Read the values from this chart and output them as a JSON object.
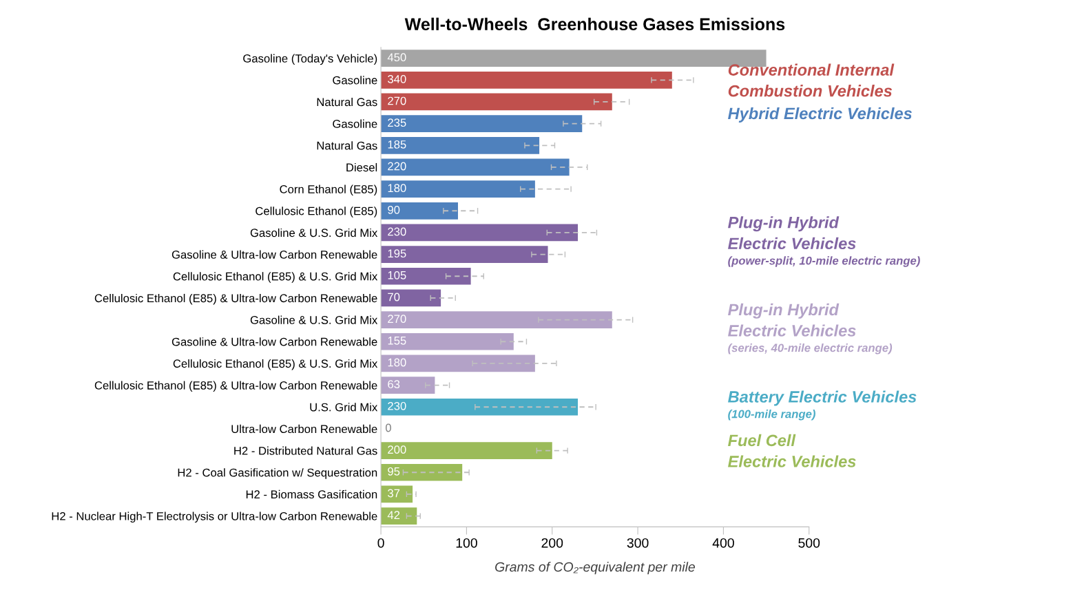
{
  "chart_data": {
    "type": "bar",
    "orientation": "horizontal",
    "title": "Well-to-Wheels  Greenhouse Gases Emissions",
    "xlabel": "Grams of CO₂-equivalent per mile",
    "categories": [
      "Gasoline (Today's Vehicle)",
      "Gasoline",
      "Natural Gas",
      "Gasoline",
      "Natural Gas",
      "Diesel",
      "Corn Ethanol (E85)",
      "Cellulosic Ethanol (E85)",
      "Gasoline & U.S. Grid Mix",
      "Gasoline & Ultra-low Carbon Renewable",
      "Cellulosic Ethanol (E85) & U.S. Grid Mix",
      "Cellulosic Ethanol (E85) & Ultra-low Carbon Renewable",
      "Gasoline & U.S. Grid Mix",
      "Gasoline & Ultra-low Carbon Renewable",
      "Cellulosic Ethanol (E85) & U.S. Grid Mix",
      "Cellulosic Ethanol (E85) & Ultra-low Carbon Renewable",
      "U.S. Grid Mix",
      "Ultra-low Carbon Renewable",
      "H2 - Distributed Natural Gas",
      "H2 - Coal Gasification w/ Sequestration",
      "H2 - Biomass Gasification",
      "H2 - Nuclear High-T Electrolysis or Ultra-low Carbon Renewable"
    ],
    "series": [
      {
        "color": "#a5a5a5",
        "values": [
          450,
          null,
          null,
          null,
          null,
          null,
          null,
          null,
          null,
          null,
          null,
          null,
          null,
          null,
          null,
          null,
          null,
          null,
          null,
          null,
          null,
          null
        ]
      },
      {
        "name": "Conventional Internal Combustion Vehicles",
        "color": "#c0504d",
        "values": [
          null,
          340,
          270,
          null,
          null,
          null,
          null,
          null,
          null,
          null,
          null,
          null,
          null,
          null,
          null,
          null,
          null,
          null,
          null,
          null,
          null,
          null
        ],
        "errors": [
          null,
          [
            316,
            365
          ],
          [
            249,
            290
          ],
          null,
          null,
          null,
          null,
          null,
          null,
          null,
          null,
          null,
          null,
          null,
          null,
          null,
          null,
          null,
          null,
          null,
          null,
          null
        ]
      },
      {
        "name": "Hybrid Electric Vehicles",
        "color": "#4f81bd",
        "values": [
          null,
          null,
          null,
          235,
          185,
          220,
          180,
          90,
          null,
          null,
          null,
          null,
          null,
          null,
          null,
          null,
          null,
          null,
          null,
          null,
          null,
          null
        ],
        "errors": [
          null,
          null,
          null,
          [
            213,
            257
          ],
          [
            168,
            203
          ],
          [
            199,
            241
          ],
          [
            163,
            222
          ],
          [
            73,
            113
          ],
          null,
          null,
          null,
          null,
          null,
          null,
          null,
          null,
          null,
          null,
          null,
          null,
          null,
          null
        ]
      },
      {
        "name": "Plug-in Hybrid Electric Vehicles (power-split, 10-mile electric range)",
        "color": "#8064a2",
        "values": [
          null,
          null,
          null,
          null,
          null,
          null,
          null,
          null,
          230,
          195,
          105,
          70,
          null,
          null,
          null,
          null,
          null,
          null,
          null,
          null,
          null,
          null
        ],
        "errors": [
          null,
          null,
          null,
          null,
          null,
          null,
          null,
          null,
          [
            194,
            252
          ],
          [
            176,
            215
          ],
          [
            76,
            120
          ],
          [
            58,
            87
          ],
          null,
          null,
          null,
          null,
          null,
          null,
          null,
          null,
          null,
          null
        ]
      },
      {
        "name": "Plug-in Hybrid Electric Vehicles (series, 40-mile electric range)",
        "color": "#b3a2c7",
        "values": [
          null,
          null,
          null,
          null,
          null,
          null,
          null,
          null,
          null,
          null,
          null,
          null,
          270,
          155,
          180,
          63,
          null,
          null,
          null,
          null,
          null,
          null
        ],
        "errors": [
          null,
          null,
          null,
          null,
          null,
          null,
          null,
          null,
          null,
          null,
          null,
          null,
          [
            184,
            294
          ],
          [
            140,
            170
          ],
          [
            107,
            205
          ],
          [
            52,
            80
          ],
          null,
          null,
          null,
          null,
          null,
          null
        ]
      },
      {
        "name": "Battery Electric Vehicles (100-mile range)",
        "color": "#4bacc6",
        "values": [
          null,
          null,
          null,
          null,
          null,
          null,
          null,
          null,
          null,
          null,
          null,
          null,
          null,
          null,
          null,
          null,
          230,
          0,
          null,
          null,
          null,
          null
        ],
        "errors": [
          null,
          null,
          null,
          null,
          null,
          null,
          null,
          null,
          null,
          null,
          null,
          null,
          null,
          null,
          null,
          null,
          [
            110,
            251
          ],
          null,
          null,
          null,
          null,
          null
        ]
      },
      {
        "name": "Fuel Cell Electric Vehicles",
        "color": "#9bbb59",
        "values": [
          null,
          null,
          null,
          null,
          null,
          null,
          null,
          null,
          null,
          null,
          null,
          null,
          null,
          null,
          null,
          null,
          null,
          null,
          200,
          95,
          37,
          42
        ],
        "errors": [
          null,
          null,
          null,
          null,
          null,
          null,
          null,
          null,
          null,
          null,
          null,
          null,
          null,
          null,
          null,
          null,
          null,
          null,
          [
            182,
            218
          ],
          [
            26,
            103
          ],
          [
            30,
            41
          ],
          [
            30,
            46
          ]
        ]
      }
    ],
    "xlim": [
      0,
      500
    ],
    "xticks": [
      0,
      100,
      200,
      300,
      400,
      500
    ],
    "data_labels": true,
    "grid": false
  }
}
